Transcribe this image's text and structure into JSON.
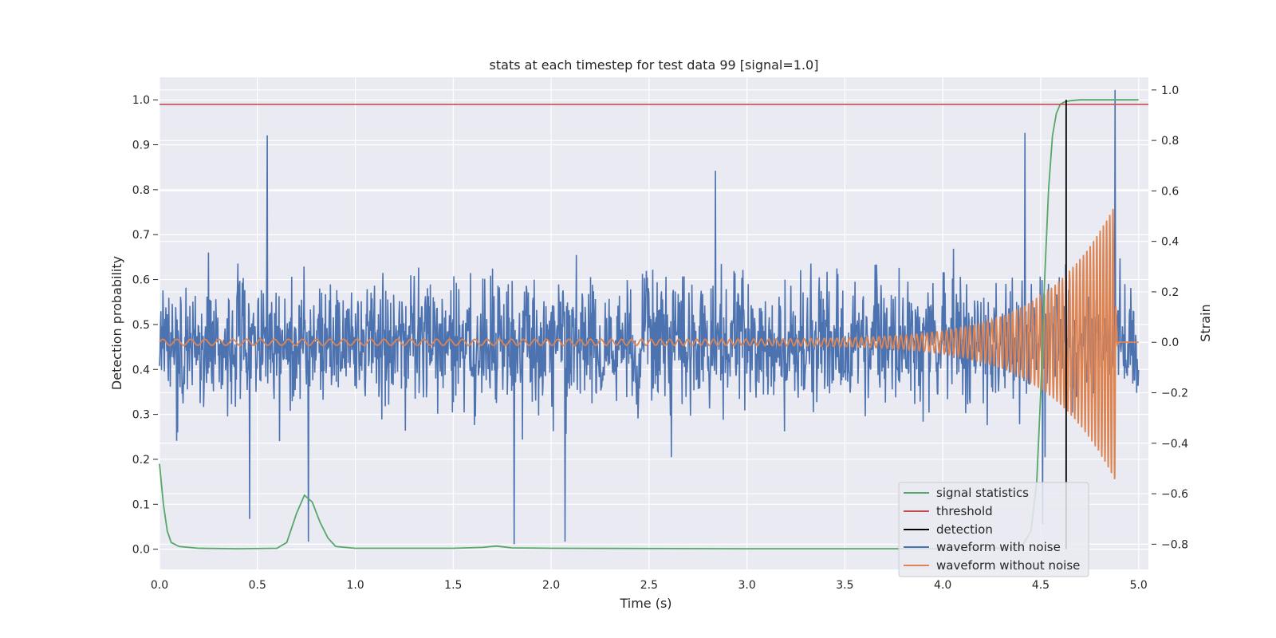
{
  "chart_data": {
    "type": "line",
    "title": "stats at each timestep for test data 99 [signal=1.0]",
    "xlabel": "Time (s)",
    "ylabel": "Detection probability",
    "ylabel_right": "Strain",
    "xlim": [
      0.0,
      5.05
    ],
    "ylim": [
      -0.045,
      1.05
    ],
    "ylim_right": [
      -0.9,
      1.05
    ],
    "x_ticks": [
      "0.0",
      "0.5",
      "1.0",
      "1.5",
      "2.0",
      "2.5",
      "3.0",
      "3.5",
      "4.0",
      "4.5",
      "5.0"
    ],
    "y_ticks": [
      "0.0",
      "0.1",
      "0.2",
      "0.3",
      "0.4",
      "0.5",
      "0.6",
      "0.7",
      "0.8",
      "0.9",
      "1.0"
    ],
    "y_ticks_right": [
      "−0.8",
      "−0.6",
      "−0.4",
      "−0.2",
      "0.0",
      "0.2",
      "0.4",
      "0.6",
      "0.8",
      "1.0"
    ],
    "grid": true,
    "legend_position": "lower-right",
    "colors": {
      "signal_statistics": "#55a868",
      "threshold": "#c44e52",
      "detection": "#000000",
      "waveform_with_noise": "#4c72b0",
      "waveform_without_noise": "#dd8452",
      "plot_background": "#eaeaf2",
      "grid": "#ffffff"
    },
    "series": [
      {
        "name": "signal statistics",
        "axis": "left",
        "x": [
          0.0,
          0.02,
          0.04,
          0.06,
          0.1,
          0.2,
          0.4,
          0.6,
          0.65,
          0.7,
          0.74,
          0.78,
          0.82,
          0.86,
          0.9,
          1.0,
          1.5,
          1.65,
          1.72,
          1.8,
          2.0,
          3.0,
          4.0,
          4.4,
          4.45,
          4.48,
          4.5,
          4.52,
          4.54,
          4.56,
          4.58,
          4.6,
          4.62,
          4.65,
          4.7,
          5.0
        ],
        "y": [
          0.19,
          0.1,
          0.04,
          0.015,
          0.006,
          0.002,
          0.001,
          0.002,
          0.015,
          0.08,
          0.12,
          0.105,
          0.06,
          0.025,
          0.006,
          0.002,
          0.002,
          0.004,
          0.007,
          0.003,
          0.002,
          0.001,
          0.001,
          0.003,
          0.04,
          0.15,
          0.35,
          0.6,
          0.8,
          0.92,
          0.97,
          0.99,
          0.995,
          0.998,
          1.0,
          1.0
        ]
      },
      {
        "name": "threshold",
        "axis": "left",
        "x": [
          0.0,
          5.05
        ],
        "y": [
          0.99,
          0.99
        ]
      },
      {
        "name": "detection",
        "axis": "left",
        "x": [
          4.63,
          4.63
        ],
        "y": [
          0.0,
          1.0
        ]
      },
      {
        "name": "waveform with noise",
        "axis": "right",
        "samples": 2000,
        "x_range": [
          0.0,
          5.0
        ],
        "y_center": 0.0,
        "y_std": 0.17,
        "y_min": -0.8,
        "y_max": 1.0,
        "spikes": [
          {
            "x": 0.55,
            "y": 0.82
          },
          {
            "x": 0.46,
            "y": -0.7
          },
          {
            "x": 0.76,
            "y": -0.79
          },
          {
            "x": 1.81,
            "y": -0.82
          },
          {
            "x": 2.07,
            "y": -0.79
          },
          {
            "x": 2.84,
            "y": 0.68
          },
          {
            "x": 4.42,
            "y": 0.83
          },
          {
            "x": 4.88,
            "y": 1.0
          },
          {
            "x": 4.51,
            "y": -0.72
          }
        ]
      },
      {
        "name": "waveform without noise",
        "axis": "right",
        "x_range": [
          0.0,
          4.9
        ],
        "y_center": 0.0,
        "chirp": {
          "start_frequency_hz": 14,
          "end_frequency_hz": 62,
          "start_amplitude": 0.012,
          "peak_amplitude": 0.55,
          "merger_time": 4.88,
          "ringdown_end": 4.9
        }
      }
    ]
  }
}
